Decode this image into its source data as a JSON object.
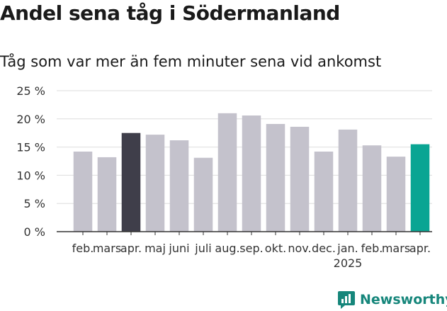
{
  "header": {
    "title": "Andel sena tåg i Södermanland",
    "subtitle": "Tåg som var mer än fem minuter sena vid ankomst"
  },
  "branding": {
    "logo_text": "Newsworthy",
    "logo_icon": "newsworthy-chart-icon",
    "logo_color": "#16867b"
  },
  "colors": {
    "default_bar": "#c4c2cc",
    "highlight_previous": "#3f3e4a",
    "highlight_current": "#0aa593",
    "grid": "#dddddd",
    "axis": "#333333"
  },
  "chart_data": {
    "type": "bar",
    "title": "Andel sena tåg i Södermanland",
    "subtitle": "Tåg som var mer än fem minuter sena vid ankomst",
    "xlabel": "",
    "ylabel": "",
    "categories": [
      "feb.",
      "mars",
      "apr.",
      "maj",
      "juni",
      "juli",
      "aug.",
      "sep.",
      "okt.",
      "nov.",
      "dec.",
      "jan.",
      "feb.",
      "mars",
      "apr."
    ],
    "year_labels": [
      {
        "index": 11,
        "label": "2025"
      }
    ],
    "values": [
      14.2,
      13.2,
      17.5,
      17.2,
      16.2,
      13.1,
      21.0,
      20.6,
      19.1,
      18.6,
      14.2,
      18.1,
      15.3,
      13.3,
      15.5
    ],
    "highlight": {
      "2": "highlight_previous",
      "14": "highlight_current"
    },
    "ylim": [
      0,
      25
    ],
    "yticks": [
      0,
      5,
      10,
      15,
      20,
      25
    ],
    "ytick_suffix": " %",
    "grid": true
  }
}
